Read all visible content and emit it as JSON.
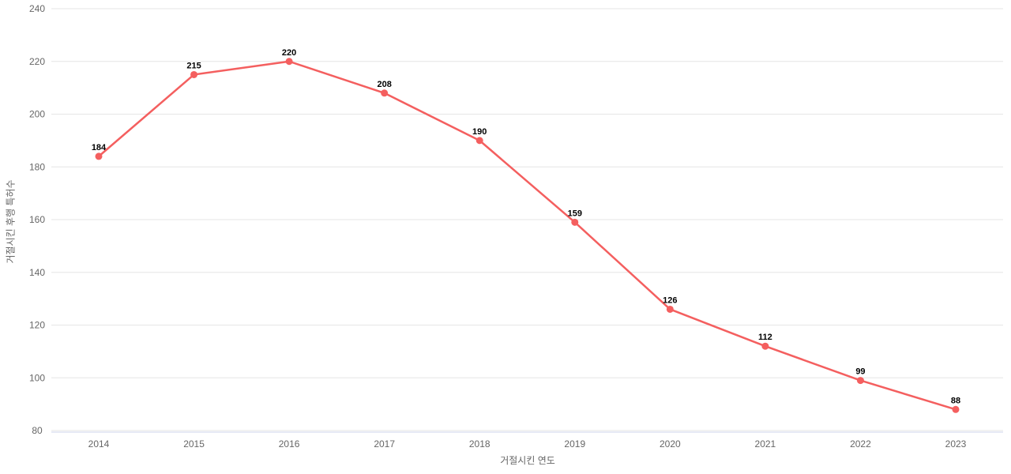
{
  "chart_data": {
    "type": "line",
    "title": "",
    "xlabel": "거절시킨 연도",
    "ylabel": "거절시킨 후행 특허수",
    "categories": [
      "2014",
      "2015",
      "2016",
      "2017",
      "2018",
      "2019",
      "2020",
      "2021",
      "2022",
      "2023"
    ],
    "values": [
      184,
      215,
      220,
      208,
      190,
      159,
      126,
      112,
      99,
      88
    ],
    "data_labels": [
      "184",
      "215",
      "220",
      "208",
      "190",
      "159",
      "126",
      "112",
      "99",
      "88"
    ],
    "ylim": [
      80,
      240
    ],
    "ytick_step": 20,
    "ytick_labels": [
      "80",
      "100",
      "120",
      "140",
      "160",
      "180",
      "200",
      "220",
      "240"
    ],
    "grid": true,
    "legend_position": "none",
    "colors": {
      "line": "#f45f5f",
      "marker": "#f45f5f",
      "grid_line": "#e6e6e6",
      "axis_line": "#ccd6eb",
      "tick_label": "#666666",
      "axis_title": "#666666",
      "data_label": "#000000"
    }
  }
}
